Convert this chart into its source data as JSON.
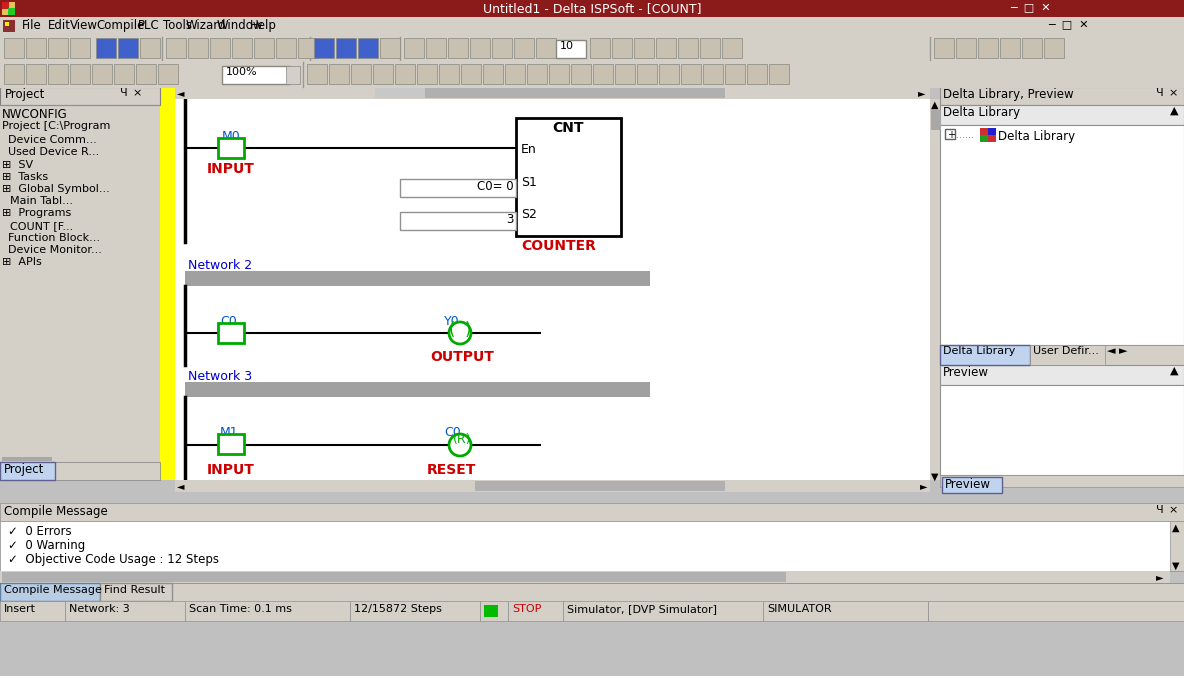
{
  "title": "Untitled1 - Delta ISPSoft - [COUNT]",
  "title_bar_color": "#8B1A1A",
  "menu_bar_bg": "#D4D0C8",
  "menu_items": [
    "File",
    "Edit",
    "View",
    "Compile",
    "PLC",
    "Tools",
    "Wizard",
    "Window",
    "Help"
  ],
  "toolbar_bg": "#D4D0C8",
  "main_bg": "#FFFFFF",
  "left_panel_bg": "#D4D0C8",
  "right_panel_bg": "#D4D0C8",
  "network_bar_color": "#A0A0A0",
  "network_label_color": "#0000CD",
  "status_bar_bg": "#D4D0C8",
  "compile_msgs": [
    "0 Errors",
    "0 Warning",
    "Objective Code Usage : 12 Steps"
  ],
  "contact_color": "#00AA00",
  "label_color_blue": "#0055CC",
  "label_color_red": "#CC0000",
  "coil_color": "#00AA00",
  "input_box_color": "#E8E8E8",
  "yellow_bar_color": "#FFFF00",
  "tab_selected_bg": "#B8CCE4",
  "tab_bg": "#D4D0C8",
  "scrollbar_thumb": "#C0C0C0",
  "scrollbar_bg": "#E8E8E8",
  "compile_hdr_bg": "#D4D0C8",
  "grid_line_color": "#C8C8C8"
}
